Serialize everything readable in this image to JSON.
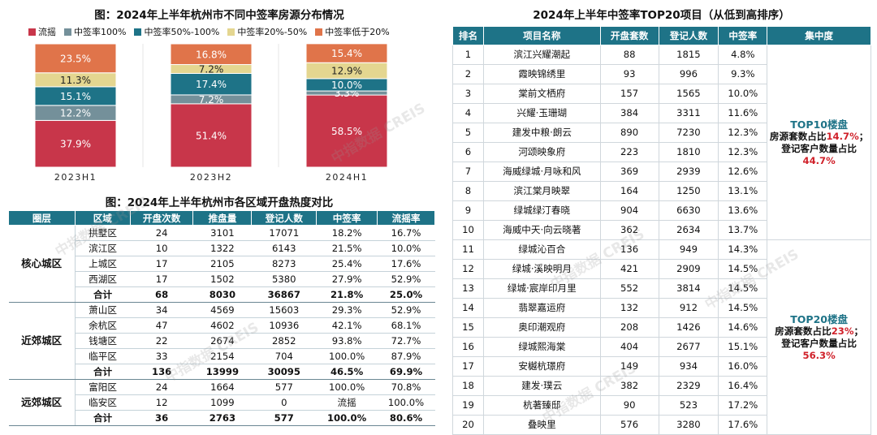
{
  "chart_data": {
    "type": "stacked_bar",
    "title": "图：2024年上半年杭州市不同中签率房源分布情况",
    "categories": [
      "2023H1",
      "2023H2",
      "2024H1"
    ],
    "series": [
      {
        "name": "流摇",
        "color": "#c8364a",
        "values": [
          37.9,
          51.4,
          58.5
        ]
      },
      {
        "name": "中签率100%",
        "color": "#74909a",
        "values": [
          12.2,
          7.2,
          3.3
        ]
      },
      {
        "name": "中签率50%-100%",
        "color": "#1e7387",
        "values": [
          15.1,
          17.4,
          10.0
        ]
      },
      {
        "name": "中签率20%-50%",
        "color": "#e4d690",
        "values": [
          11.3,
          7.2,
          12.9
        ]
      },
      {
        "name": "中签率低于20%",
        "color": "#e0744a",
        "values": [
          23.5,
          16.8,
          15.4
        ]
      }
    ],
    "labels": [
      [
        "37.9%",
        "12.2%",
        "15.1%",
        "11.3%",
        "23.5%"
      ],
      [
        "51.4%",
        "7.2%",
        "17.4%",
        "7.2%",
        "16.8%"
      ],
      [
        "58.5%",
        "3.3%",
        "10.0%",
        "12.9%",
        "15.4%"
      ]
    ],
    "ylim": [
      0,
      100
    ],
    "legend": "top"
  },
  "table1": {
    "title": "图：2024年上半年杭州市各区域开盘热度对比",
    "headers": [
      "圈层",
      "区域",
      "开盘次数",
      "推盘量",
      "登记人数",
      "中签率",
      "流摇率"
    ],
    "groups": [
      {
        "zone": "核心城区",
        "rows": [
          [
            "拱墅区",
            "24",
            "3101",
            "17071",
            "18.2%",
            "16.7%"
          ],
          [
            "滨江区",
            "10",
            "1322",
            "6143",
            "21.5%",
            "10.0%"
          ],
          [
            "上城区",
            "17",
            "2105",
            "8273",
            "25.4%",
            "17.6%"
          ],
          [
            "西湖区",
            "17",
            "1502",
            "5380",
            "27.9%",
            "52.9%"
          ],
          [
            "合计",
            "68",
            "8030",
            "36867",
            "21.8%",
            "25.0%"
          ]
        ]
      },
      {
        "zone": "近郊城区",
        "rows": [
          [
            "萧山区",
            "34",
            "4569",
            "15603",
            "29.3%",
            "52.9%"
          ],
          [
            "余杭区",
            "47",
            "4602",
            "10936",
            "42.1%",
            "68.1%"
          ],
          [
            "钱塘区",
            "22",
            "2674",
            "2852",
            "93.8%",
            "72.7%"
          ],
          [
            "临平区",
            "33",
            "2154",
            "704",
            "100.0%",
            "87.9%"
          ],
          [
            "合计",
            "136",
            "13999",
            "30095",
            "46.5%",
            "69.9%"
          ]
        ]
      },
      {
        "zone": "远郊城区",
        "rows": [
          [
            "富阳区",
            "24",
            "1664",
            "577",
            "100.0%",
            "70.8%"
          ],
          [
            "临安区",
            "12",
            "1099",
            "0",
            "流摇",
            "100.0%"
          ],
          [
            "合计",
            "36",
            "2763",
            "577",
            "100.0%",
            "80.6%"
          ]
        ]
      }
    ]
  },
  "table2": {
    "title": "2024年上半年中签率TOP20项目（从低到高排序）",
    "headers": [
      "排名",
      "项目名称",
      "开盘套数",
      "登记人数",
      "中签率",
      "集中度"
    ],
    "rows": [
      [
        "1",
        "滨江兴耀潮起",
        "88",
        "1815",
        "4.8%"
      ],
      [
        "2",
        "霞映锦绣里",
        "93",
        "996",
        "9.3%"
      ],
      [
        "3",
        "棠前文栖府",
        "157",
        "1565",
        "10.0%"
      ],
      [
        "4",
        "兴耀·玉珊瑚",
        "384",
        "3311",
        "11.6%"
      ],
      [
        "5",
        "建发中粮·朗云",
        "890",
        "7230",
        "12.3%"
      ],
      [
        "6",
        "河颂映象府",
        "223",
        "1810",
        "12.3%"
      ],
      [
        "7",
        "海威绿城·月咏和风",
        "369",
        "2939",
        "12.6%"
      ],
      [
        "8",
        "滨江棠月映翠",
        "164",
        "1250",
        "13.1%"
      ],
      [
        "9",
        "绿城绿汀春晓",
        "904",
        "6630",
        "13.6%"
      ],
      [
        "10",
        "海威中天·向云晓著",
        "362",
        "2634",
        "13.7%"
      ],
      [
        "11",
        "绿城沁百合",
        "136",
        "949",
        "14.3%"
      ],
      [
        "12",
        "绿城·溪映明月",
        "421",
        "2909",
        "14.5%"
      ],
      [
        "13",
        "绿城·宸岸印月里",
        "552",
        "3814",
        "14.5%"
      ],
      [
        "14",
        "翡翠嘉运府",
        "132",
        "912",
        "14.5%"
      ],
      [
        "15",
        "奥印潮观府",
        "208",
        "1426",
        "14.6%"
      ],
      [
        "16",
        "绿城熙海棠",
        "404",
        "2677",
        "15.1%"
      ],
      [
        "17",
        "安樾杭璟府",
        "149",
        "934",
        "16.0%"
      ],
      [
        "18",
        "建发·璞云",
        "382",
        "2329",
        "16.4%"
      ],
      [
        "19",
        "杭著臻邸",
        "90",
        "523",
        "17.2%"
      ],
      [
        "20",
        "叠映里",
        "576",
        "3280",
        "17.6%"
      ]
    ],
    "concentration": {
      "top10": {
        "head": "TOP10楼盘",
        "line1": "房源套数占比",
        "value1": "14.7%",
        "sep": "；",
        "line2": "登记客户数量占比",
        "value2": "44.7%"
      },
      "top20": {
        "head": "TOP20楼盘",
        "line1": "房源套数占比",
        "value1": "23%",
        "sep": "；",
        "line2": "登记客户数量占比",
        "value2": "56.3%"
      }
    }
  },
  "watermark": "中指数据 CREIS"
}
